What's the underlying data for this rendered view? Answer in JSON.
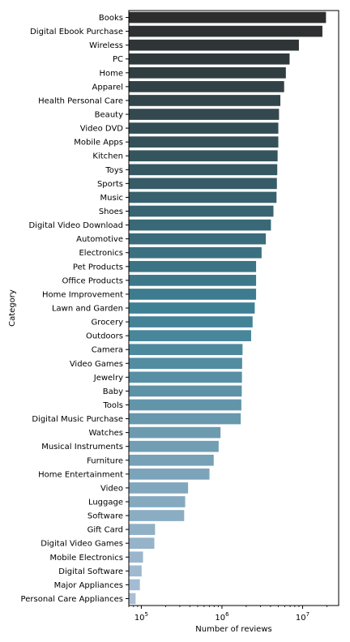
{
  "chart_data": {
    "type": "bar",
    "orientation": "horizontal",
    "xlabel": "Number of reviews",
    "ylabel": "Category",
    "x_scale": "log",
    "xlim": [
      70000,
      28000000
    ],
    "x_ticks": [
      {
        "value": 100000,
        "base": "10",
        "exp": "5"
      },
      {
        "value": 1000000,
        "base": "10",
        "exp": "6"
      },
      {
        "value": 10000000,
        "base": "10",
        "exp": "7"
      }
    ],
    "color_start": "#2d2d2d",
    "color_end": "#a9bfd6",
    "categories": [
      "Books",
      "Digital Ebook Purchase",
      "Wireless",
      "PC",
      "Home",
      "Apparel",
      "Health Personal Care",
      "Beauty",
      "Video DVD",
      "Mobile Apps",
      "Kitchen",
      "Toys",
      "Sports",
      "Music",
      "Shoes",
      "Digital Video Download",
      "Automotive",
      "Electronics",
      "Pet Products",
      "Office Products",
      "Home Improvement",
      "Lawn and Garden",
      "Grocery",
      "Outdoors",
      "Camera",
      "Video Games",
      "Jewelry",
      "Baby",
      "Tools",
      "Digital Music Purchase",
      "Watches",
      "Musical Instruments",
      "Furniture",
      "Home Entertainment",
      "Video",
      "Luggage",
      "Software",
      "Gift Card",
      "Digital Video Games",
      "Mobile Electronics",
      "Digital Software",
      "Major Appliances",
      "Personal Care Appliances"
    ],
    "values": [
      19500000,
      17600000,
      9000000,
      6900000,
      6200000,
      5900000,
      5300000,
      5100000,
      5000000,
      5000000,
      4900000,
      4850000,
      4800000,
      4750000,
      4350000,
      4050000,
      3500000,
      3100000,
      2650000,
      2650000,
      2650000,
      2550000,
      2400000,
      2300000,
      1800000,
      1780000,
      1770000,
      1760000,
      1740000,
      1710000,
      960000,
      910000,
      790000,
      700000,
      380000,
      350000,
      340000,
      148000,
      145000,
      105000,
      101000,
      96000,
      85000
    ]
  }
}
